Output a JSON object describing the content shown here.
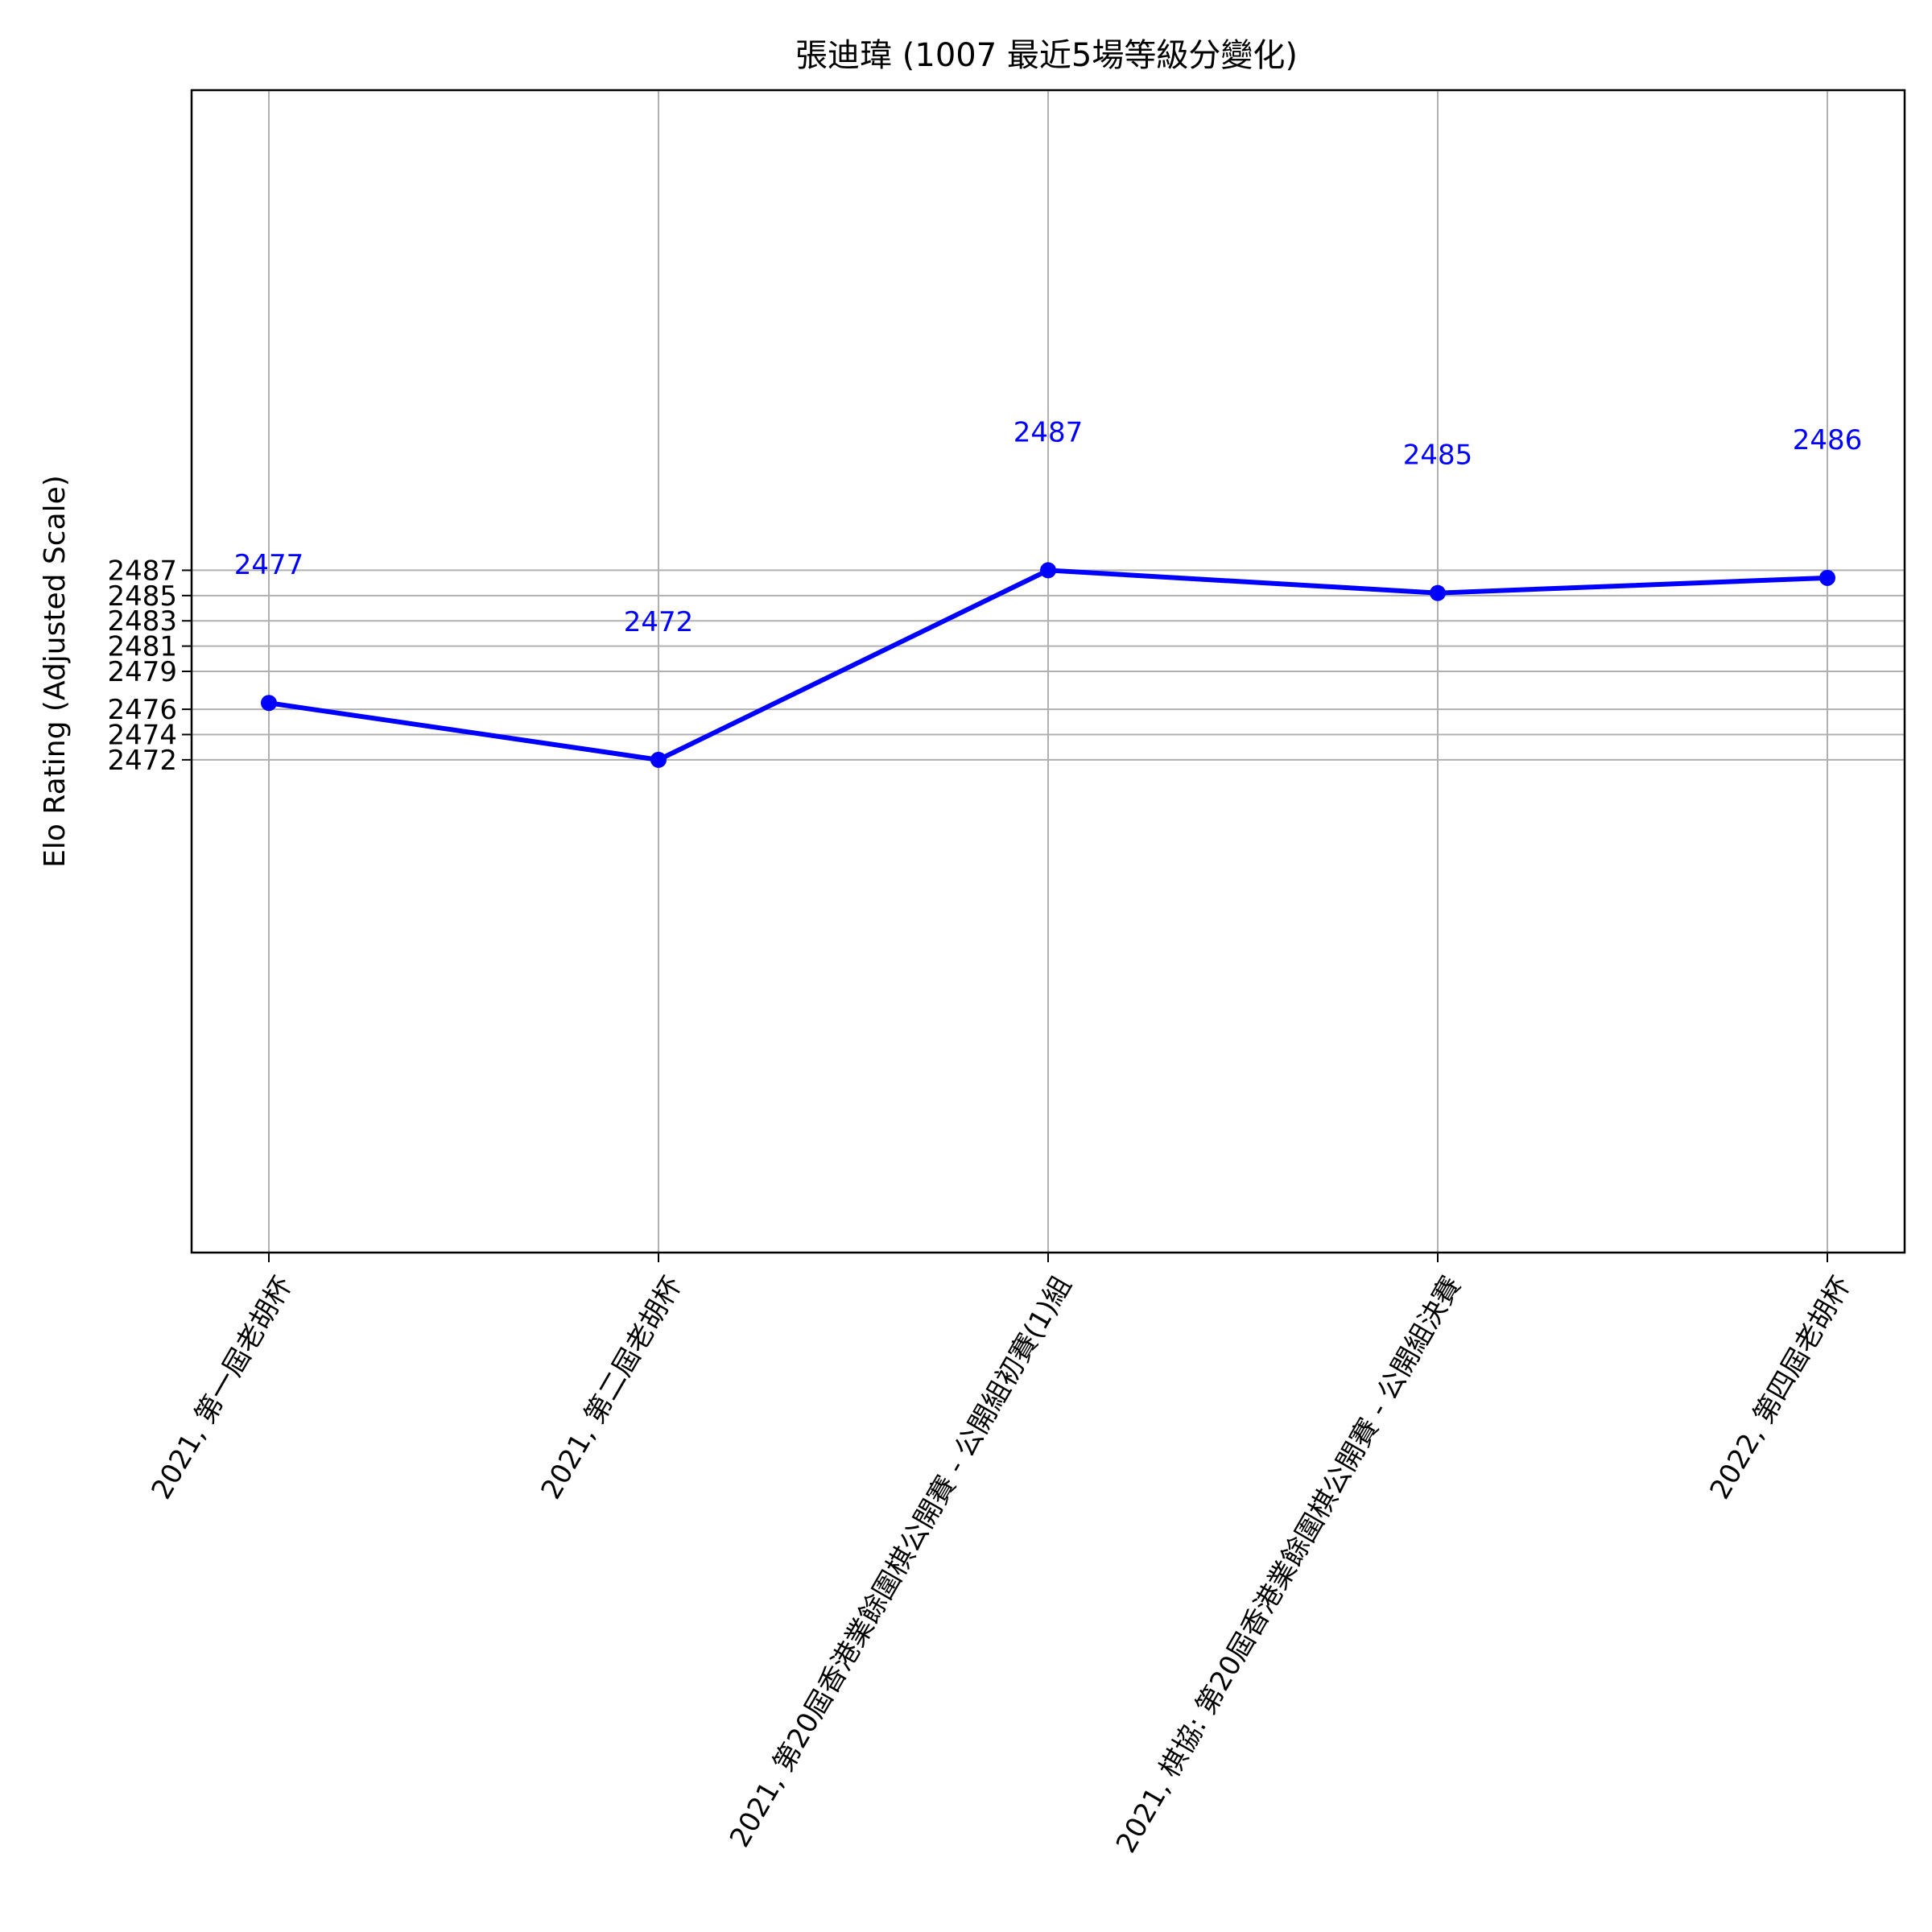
{
  "chart_data": {
    "type": "line",
    "title": "張迪瑋 (1007 最近5場等級分變化)",
    "xlabel": "",
    "ylabel": "Elo Rating (Adjusted Scale)",
    "categories": [
      "2021, 第一屆老胡杯",
      "2021, 第二屆老胡杯",
      "2021, 第20屆香港業餘圍棋公開賽 - 公開組初賽(1)組",
      "2021, 棋協: 第20屆香港業餘圍棋公開賽 - 公開組決賽",
      "2022, 第四屆老胡杯"
    ],
    "values": [
      2476.5,
      2472,
      2487,
      2485.2,
      2486.4
    ],
    "data_labels": [
      "2477",
      "2472",
      "2487",
      "2485",
      "2486"
    ],
    "y_ticks": [
      "2472",
      "2474",
      "2476",
      "2479",
      "2481",
      "2483",
      "2485",
      "2487"
    ],
    "y_tick_values": [
      2472,
      2474,
      2476,
      2479,
      2481,
      2483,
      2485,
      2487
    ],
    "ylim": [
      2433,
      2525
    ],
    "grid": true,
    "colors": {
      "line": "#0000ff",
      "label": "#0000ff",
      "grid": "#b0b0b0"
    }
  }
}
